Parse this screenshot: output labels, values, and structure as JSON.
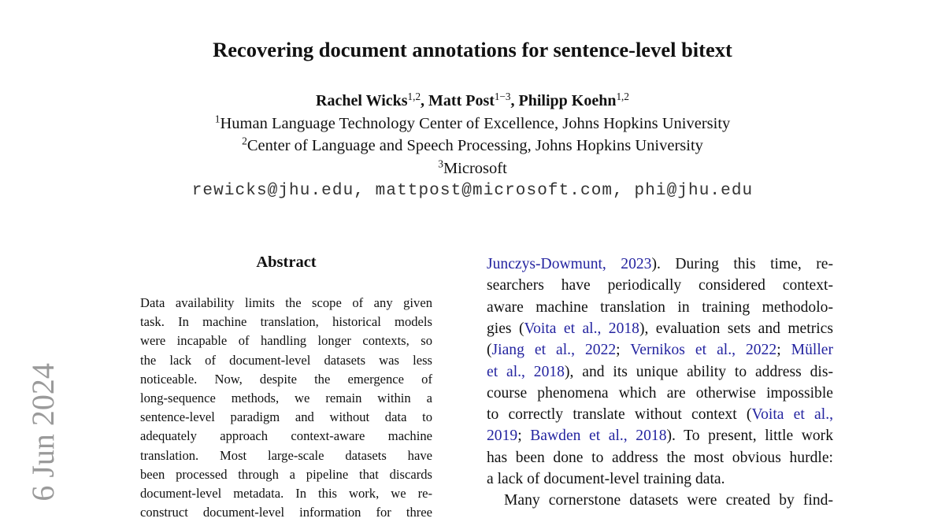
{
  "stamp": "] 6 Jun 2024",
  "header": {
    "title": "Recovering document annotations for sentence-level bitext",
    "authors": [
      {
        "text": "Rachel Wicks",
        "sup": "1,2"
      },
      {
        "text": ", Matt Post",
        "sup": "1−3"
      },
      {
        "text": ", Philipp Koehn",
        "sup": "1,2"
      }
    ],
    "affiliations": [
      {
        "sup": "1",
        "text": "Human Language Technology Center of Excellence, Johns Hopkins University"
      },
      {
        "sup": "2",
        "text": "Center of Language and Speech Processing, Johns Hopkins University"
      },
      {
        "sup": "3",
        "text": "Microsoft"
      }
    ],
    "emails": "rewicks@jhu.edu, mattpost@microsoft.com, phi@jhu.edu"
  },
  "abstract": {
    "heading": "Abstract",
    "lines": [
      "Data availability limits the scope of any given",
      "task. In machine translation, historical models",
      "were incapable of handling longer contexts, so",
      "the lack of document-level datasets was less",
      "noticeable.  Now, despite the emergence of",
      "long-sequence methods, we remain within a",
      "sentence-level paradigm and without data to",
      "adequately approach context-aware machine",
      "translation.  Most large-scale datasets have",
      "been processed through a pipeline that discards",
      "document-level metadata. In this work, we re-",
      "construct document-level information for three"
    ]
  },
  "right_column": {
    "lines": [
      [
        {
          "cite": "Junczys-Dowmunt, 2023"
        },
        ").  During this time, re-"
      ],
      [
        "searchers have periodically considered context-"
      ],
      [
        "aware machine translation in training methodolo-"
      ],
      [
        "gies (",
        {
          "cite": "Voita et al., 2018"
        },
        "), evaluation sets and metrics"
      ],
      [
        "(",
        {
          "cite": "Jiang et al., 2022"
        },
        "; ",
        {
          "cite": "Vernikos et al., 2022"
        },
        "; ",
        {
          "cite": "Müller"
        }
      ],
      [
        {
          "cite": "et al., 2018"
        },
        "), and its unique ability to address dis-"
      ],
      [
        "course phenomena which are otherwise impossible"
      ],
      [
        "to correctly translate without context (",
        {
          "cite": "Voita et al.,"
        }
      ],
      [
        {
          "cite": "2019"
        },
        "; ",
        {
          "cite": "Bawden et al., 2018"
        },
        "). To present, little work"
      ],
      [
        "has been done to address the most obvious hurdle:"
      ],
      [
        "a lack of document-level training data."
      ],
      [
        "Many cornerstone datasets were created by find-"
      ]
    ]
  }
}
